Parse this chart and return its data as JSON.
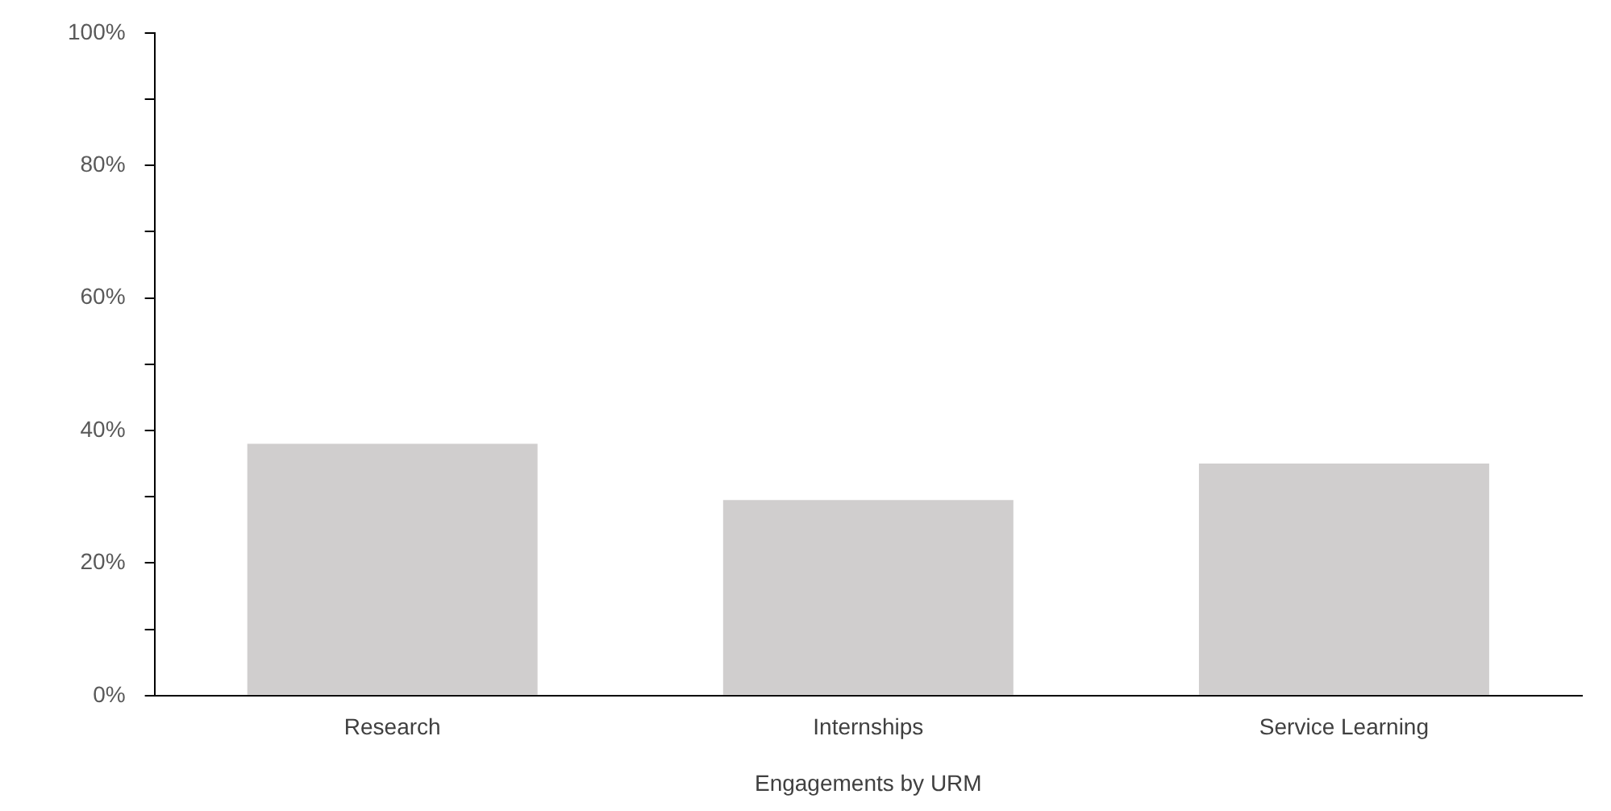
{
  "chart_data": {
    "type": "bar",
    "xlabel": "Engagements by URM",
    "categories": [
      "Research",
      "Internships",
      "Service Learning"
    ],
    "values": [
      38,
      29.5,
      35
    ],
    "color": "#d0cece",
    "ylim": [
      0,
      100
    ],
    "yticks": [
      {
        "value": 0,
        "label": "0%"
      },
      {
        "value": 10,
        "label": null
      },
      {
        "value": 20,
        "label": "20%"
      },
      {
        "value": 30,
        "label": null
      },
      {
        "value": 40,
        "label": "40%"
      },
      {
        "value": 50,
        "label": null
      },
      {
        "value": 60,
        "label": "60%"
      },
      {
        "value": 70,
        "label": null
      },
      {
        "value": 80,
        "label": "80%"
      },
      {
        "value": 90,
        "label": null
      },
      {
        "value": 100,
        "label": "100%"
      }
    ],
    "grid": false,
    "legend": false
  }
}
